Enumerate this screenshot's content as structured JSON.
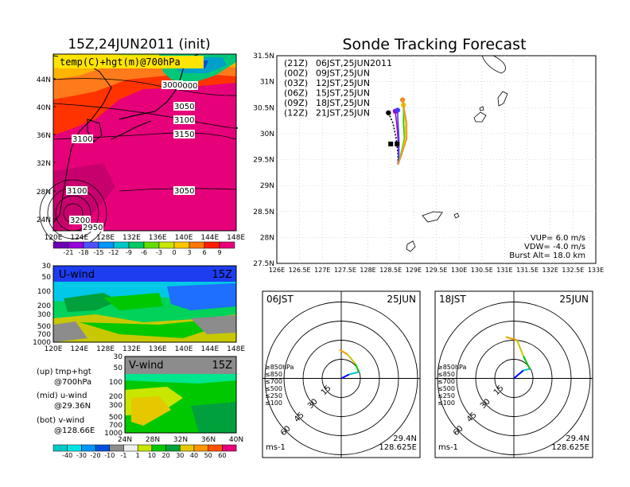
{
  "left": {
    "map_title": "15Z,24JUN2011 (init)",
    "map_label": "temp(C)+hgt(m)@700hPa",
    "map_lat_ticks": [
      "44N",
      "40N",
      "36N",
      "32N",
      "28N",
      "24N"
    ],
    "map_lon_ticks": [
      "120E",
      "124E",
      "128E",
      "132E",
      "136E",
      "140E",
      "144E",
      "148E"
    ],
    "contours": [
      "3000",
      "3050",
      "3100",
      "3100",
      "3150",
      "3100",
      "3050",
      "3200",
      "2950",
      "3000"
    ],
    "temp_colorbar": [
      "-21",
      "-18",
      "-15",
      "-12",
      "-9",
      "-6",
      "-3",
      "0",
      "3",
      "6",
      "9"
    ],
    "uwind_label": "U-wind",
    "uwind_time": "15Z",
    "uwind_pres_ticks": [
      "30",
      "50",
      "100",
      "200",
      "300",
      "500",
      "700",
      "1000"
    ],
    "uwind_lon_ticks": [
      "120E",
      "124E",
      "128E",
      "132E",
      "136E",
      "140E",
      "144E",
      "148E"
    ],
    "vwind_label": "V-wind",
    "vwind_time": "15Z",
    "vwind_pres_ticks": [
      "30",
      "50",
      "100",
      "200",
      "300",
      "500",
      "700",
      "1000"
    ],
    "vwind_lat_ticks": [
      "24N",
      "28N",
      "32N",
      "36N",
      "40N"
    ],
    "wind_colorbar": [
      "-40",
      "-30",
      "-20",
      "-10",
      "-1",
      "1",
      "10",
      "20",
      "30",
      "40",
      "50",
      "60"
    ],
    "legend": [
      "(up) tmp+hgt",
      "@700hPa",
      "(mid) u-wind",
      "@29.36N",
      "(bot) v-wind",
      "@128.66E"
    ]
  },
  "track": {
    "title": "Sonde Tracking Forecast",
    "lat_ticks": [
      "31.5N",
      "31N",
      "30.5N",
      "30N",
      "29.5N",
      "29N",
      "28.5N",
      "28N",
      "27.5N"
    ],
    "lon_ticks": [
      "126E",
      "126.5E",
      "127E",
      "127.5E",
      "128E",
      "128.5E",
      "129E",
      "129.5E",
      "130E",
      "130.5E",
      "131E",
      "131.5E",
      "132E",
      "132.5E",
      "133E"
    ],
    "runs": [
      {
        "z": "(21Z)",
        "jst": "06JST,25JUN2011",
        "color": "#000000"
      },
      {
        "z": "(00Z)",
        "jst": "09JST,25JUN",
        "color": "#a000c8"
      },
      {
        "z": "(03Z)",
        "jst": "12JST,25JUN",
        "color": "#3c3cff"
      },
      {
        "z": "(06Z)",
        "jst": "15JST,25JUN",
        "color": "#18c800"
      },
      {
        "z": "(09Z)",
        "jst": "18JST,25JUN",
        "color": "#e6d200"
      },
      {
        "z": "(12Z)",
        "jst": "21JST,25JUN",
        "color": "#f08c28"
      }
    ],
    "params": [
      "VUP= 6.0 m/s",
      "VDW= -4.0 m/s",
      "Burst Alt= 18.0 km"
    ]
  },
  "hodographs": [
    {
      "time": "06JST",
      "date": "25JUN",
      "rings": [
        "15",
        "30",
        "45",
        "60"
      ],
      "levels": [
        "≥850hPa",
        "≤850",
        "≤700",
        "≤500",
        "≤250",
        "≤100"
      ],
      "unit": "ms-1",
      "lat": "29.4N",
      "lon": "128.625E"
    },
    {
      "time": "18JST",
      "date": "25JUN",
      "rings": [
        "15",
        "30",
        "45",
        "60"
      ],
      "levels": [
        "≥850hPa",
        "≤850",
        "≤700",
        "≤500",
        "≤250",
        "≤100"
      ],
      "unit": "ms-1",
      "lat": "29.4N",
      "lon": "128.625E"
    }
  ],
  "level_colors": [
    "#e60000",
    "#f0a000",
    "#c8c800",
    "#00c800",
    "#00c8c8",
    "#0000ff"
  ],
  "chart_data": [
    {
      "type": "heatmap",
      "title": "15Z,24JUN2011 (init)",
      "subtitle": "temp(C)+hgt(m)@700hPa",
      "x_ticks": [
        "120E",
        "124E",
        "128E",
        "132E",
        "136E",
        "140E",
        "144E",
        "148E"
      ],
      "y_ticks": [
        "24N",
        "28N",
        "32N",
        "36N",
        "40N",
        "44N"
      ],
      "colorbar": [
        -21,
        -18,
        -15,
        -12,
        -9,
        -6,
        -3,
        0,
        3,
        6,
        9
      ]
    },
    {
      "type": "line",
      "title": "Sonde Tracking Forecast",
      "series": [
        {
          "name": "(21Z) 06JST,25JUN2011",
          "points": [
            [
              128.45,
              30.4
            ],
            [
              128.55,
              30.2
            ],
            [
              128.62,
              29.9
            ],
            [
              128.66,
              29.6
            ],
            [
              128.66,
              29.4
            ]
          ]
        },
        {
          "name": "(00Z) 09JST,25JUN",
          "points": [
            [
              128.6,
              30.43
            ],
            [
              128.63,
              30.2
            ],
            [
              128.66,
              29.9
            ],
            [
              128.67,
              29.6
            ],
            [
              128.66,
              29.4
            ]
          ]
        },
        {
          "name": "(03Z) 12JST,25JUN",
          "points": [
            [
              128.65,
              30.45
            ],
            [
              128.66,
              30.2
            ],
            [
              128.68,
              29.9
            ],
            [
              128.68,
              29.6
            ],
            [
              128.66,
              29.4
            ]
          ]
        },
        {
          "name": "(06Z) 15JST,25JUN",
          "points": [
            [
              128.78,
              30.55
            ],
            [
              128.78,
              30.2
            ],
            [
              128.8,
              29.9
            ],
            [
              128.72,
              29.6
            ],
            [
              128.66,
              29.4
            ]
          ]
        },
        {
          "name": "(09Z) 18JST,25JUN",
          "points": [
            [
              128.78,
              30.55
            ],
            [
              128.82,
              30.2
            ],
            [
              128.82,
              29.9
            ],
            [
              128.73,
              29.6
            ],
            [
              128.66,
              29.4
            ]
          ]
        },
        {
          "name": "(12Z) 21JST,25JUN",
          "points": [
            [
              128.76,
              30.65
            ],
            [
              128.85,
              30.2
            ],
            [
              128.85,
              29.9
            ],
            [
              128.74,
              29.6
            ],
            [
              128.66,
              29.4
            ]
          ]
        }
      ],
      "xlim": [
        126,
        133
      ],
      "ylim": [
        27.5,
        31.5
      ]
    }
  ]
}
